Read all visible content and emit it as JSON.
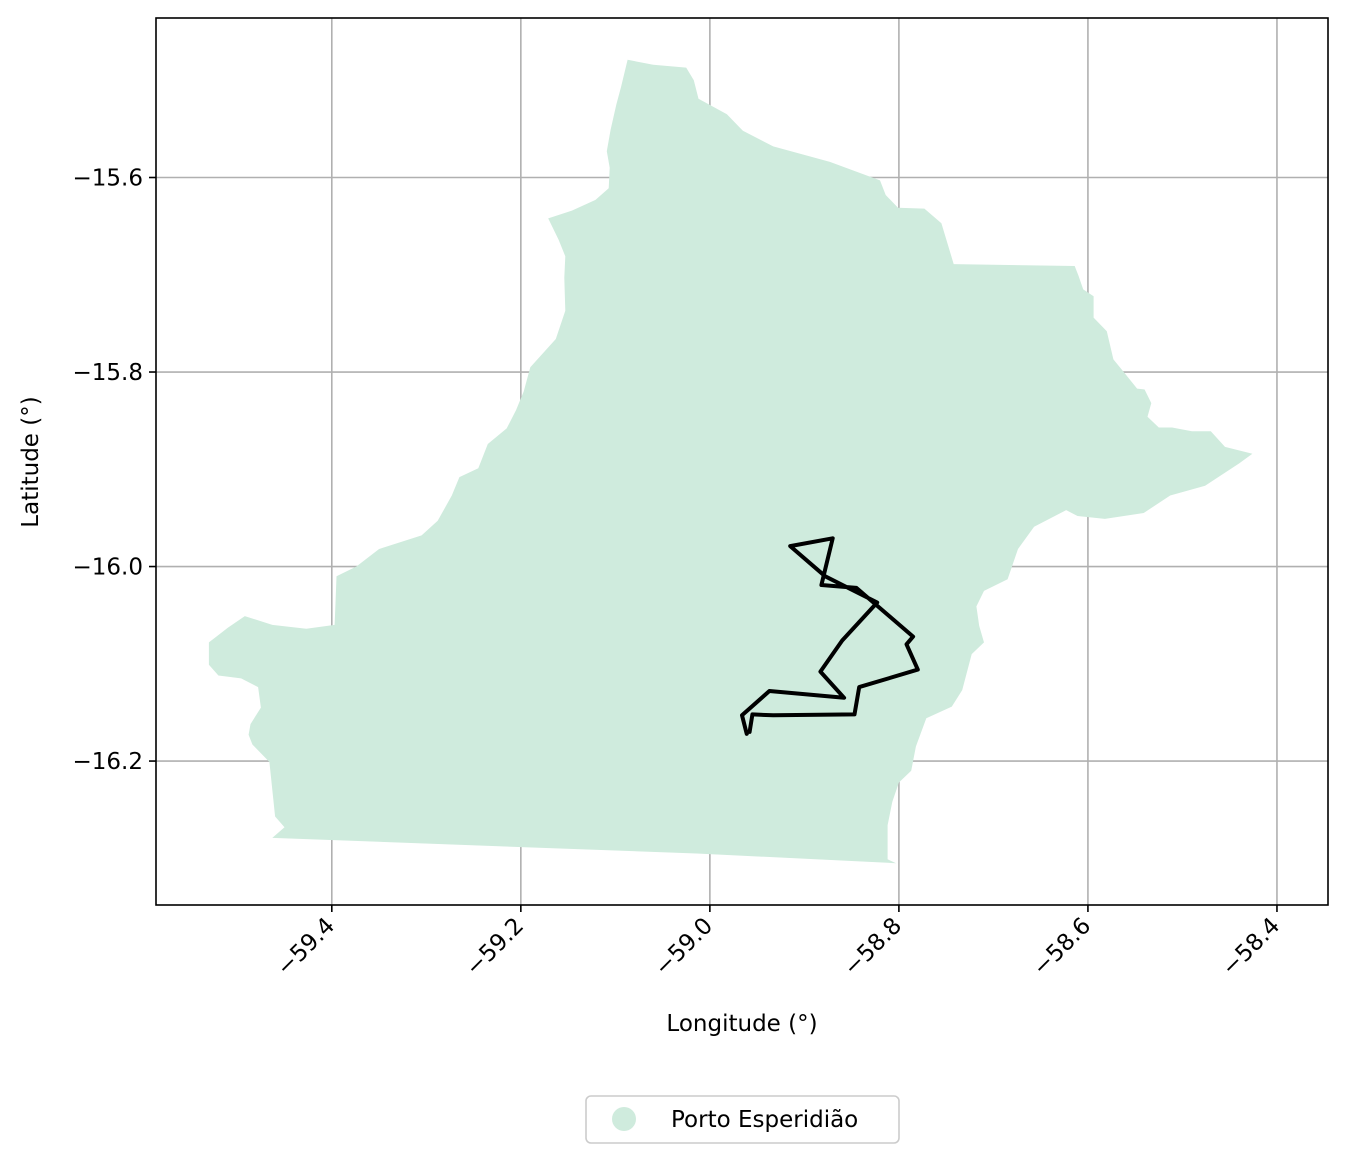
{
  "map": {
    "xlabel": "Longitude (°)",
    "ylabel": "Latitude (°)",
    "xlim": [
      -59.586,
      -58.346
    ],
    "ylim": [
      -16.348,
      -15.436
    ],
    "x_ticks": [
      -59.4,
      -59.2,
      -59.0,
      -58.8,
      -58.6,
      -58.4
    ],
    "x_tick_labels": [
      "−59.4",
      "−59.2",
      "−59.0",
      "−58.8",
      "−58.6",
      "−58.4"
    ],
    "y_ticks": [
      -15.6,
      -15.8,
      -16.0,
      -16.2
    ],
    "y_tick_labels": [
      "−15.6",
      "−15.8",
      "−16.0",
      "−16.2"
    ],
    "grid": true,
    "legend": {
      "placement": "bottom-center, below axes",
      "entries": [
        {
          "label": "Porto Esperidião",
          "marker": "circle",
          "color": "#cfebdd"
        }
      ]
    },
    "region": {
      "name": "Porto Esperidião",
      "fill_color": "#cfebdd",
      "boundary": [
        [
          -59.087,
          -15.479
        ],
        [
          -59.06,
          -15.484
        ],
        [
          -59.025,
          -15.487
        ],
        [
          -59.017,
          -15.5
        ],
        [
          -59.012,
          -15.519
        ],
        [
          -58.982,
          -15.535
        ],
        [
          -58.965,
          -15.552
        ],
        [
          -58.933,
          -15.568
        ],
        [
          -58.873,
          -15.584
        ],
        [
          -58.82,
          -15.603
        ],
        [
          -58.814,
          -15.618
        ],
        [
          -58.801,
          -15.631
        ],
        [
          -58.773,
          -15.632
        ],
        [
          -58.755,
          -15.647
        ],
        [
          -58.742,
          -15.689
        ],
        [
          -58.614,
          -15.691
        ],
        [
          -58.61,
          -15.701
        ],
        [
          -58.605,
          -15.715
        ],
        [
          -58.594,
          -15.722
        ],
        [
          -58.594,
          -15.744
        ],
        [
          -58.58,
          -15.758
        ],
        [
          -58.573,
          -15.787
        ],
        [
          -58.563,
          -15.799
        ],
        [
          -58.548,
          -15.817
        ],
        [
          -58.54,
          -15.818
        ],
        [
          -58.533,
          -15.832
        ],
        [
          -58.537,
          -15.846
        ],
        [
          -58.525,
          -15.857
        ],
        [
          -58.511,
          -15.857
        ],
        [
          -58.49,
          -15.861
        ],
        [
          -58.47,
          -15.861
        ],
        [
          -58.455,
          -15.877
        ],
        [
          -58.426,
          -15.884
        ],
        [
          -58.44,
          -15.894
        ],
        [
          -58.476,
          -15.917
        ],
        [
          -58.513,
          -15.927
        ],
        [
          -58.541,
          -15.945
        ],
        [
          -58.582,
          -15.951
        ],
        [
          -58.611,
          -15.948
        ],
        [
          -58.623,
          -15.942
        ],
        [
          -58.657,
          -15.959
        ],
        [
          -58.674,
          -15.982
        ],
        [
          -58.685,
          -16.013
        ],
        [
          -58.71,
          -16.025
        ],
        [
          -58.718,
          -16.041
        ],
        [
          -58.715,
          -16.061
        ],
        [
          -58.71,
          -16.078
        ],
        [
          -58.723,
          -16.09
        ],
        [
          -58.733,
          -16.127
        ],
        [
          -58.744,
          -16.144
        ],
        [
          -58.771,
          -16.156
        ],
        [
          -58.782,
          -16.185
        ],
        [
          -58.787,
          -16.21
        ],
        [
          -58.8,
          -16.222
        ],
        [
          -58.807,
          -16.242
        ],
        [
          -58.812,
          -16.266
        ],
        [
          -58.812,
          -16.301
        ],
        [
          -58.803,
          -16.305
        ],
        [
          -59.014,
          -16.295
        ],
        [
          -59.463,
          -16.279
        ],
        [
          -59.45,
          -16.268
        ],
        [
          -59.46,
          -16.257
        ],
        [
          -59.466,
          -16.201
        ],
        [
          -59.484,
          -16.183
        ],
        [
          -59.488,
          -16.173
        ],
        [
          -59.486,
          -16.162
        ],
        [
          -59.475,
          -16.145
        ],
        [
          -59.478,
          -16.124
        ],
        [
          -59.496,
          -16.115
        ],
        [
          -59.52,
          -16.112
        ],
        [
          -59.53,
          -16.101
        ],
        [
          -59.53,
          -16.078
        ],
        [
          -59.51,
          -16.063
        ],
        [
          -59.492,
          -16.051
        ],
        [
          -59.463,
          -16.06
        ],
        [
          -59.427,
          -16.064
        ],
        [
          -59.397,
          -16.06
        ],
        [
          -59.396,
          -16.035
        ],
        [
          -59.395,
          -16.01
        ],
        [
          -59.374,
          -16.0
        ],
        [
          -59.35,
          -15.982
        ],
        [
          -59.305,
          -15.968
        ],
        [
          -59.288,
          -15.953
        ],
        [
          -59.273,
          -15.927
        ],
        [
          -59.265,
          -15.908
        ],
        [
          -59.245,
          -15.899
        ],
        [
          -59.235,
          -15.874
        ],
        [
          -59.215,
          -15.858
        ],
        [
          -59.205,
          -15.839
        ],
        [
          -59.197,
          -15.82
        ],
        [
          -59.19,
          -15.795
        ],
        [
          -59.163,
          -15.766
        ],
        [
          -59.153,
          -15.737
        ],
        [
          -59.154,
          -15.703
        ],
        [
          -59.153,
          -15.681
        ],
        [
          -59.16,
          -15.664
        ],
        [
          -59.171,
          -15.642
        ],
        [
          -59.146,
          -15.634
        ],
        [
          -59.121,
          -15.623
        ],
        [
          -59.107,
          -15.611
        ],
        [
          -59.106,
          -15.59
        ],
        [
          -59.109,
          -15.573
        ],
        [
          -59.105,
          -15.551
        ],
        [
          -59.099,
          -15.525
        ],
        [
          -59.094,
          -15.507
        ]
      ]
    },
    "route": {
      "color": "#000000",
      "points": [
        [
          -58.958,
          -16.17
        ],
        [
          -58.955,
          -16.152
        ],
        [
          -58.933,
          -16.153
        ],
        [
          -58.847,
          -16.152
        ],
        [
          -58.842,
          -16.124
        ],
        [
          -58.78,
          -16.106
        ],
        [
          -58.792,
          -16.08
        ],
        [
          -58.785,
          -16.072
        ],
        [
          -58.845,
          -16.022
        ],
        [
          -58.882,
          -16.019
        ],
        [
          -58.87,
          -15.971
        ],
        [
          -58.915,
          -15.979
        ],
        [
          -58.878,
          -16.01
        ],
        [
          -58.823,
          -16.037
        ],
        [
          -58.86,
          -16.076
        ],
        [
          -58.883,
          -16.108
        ],
        [
          -58.858,
          -16.135
        ],
        [
          -58.937,
          -16.128
        ],
        [
          -58.966,
          -16.153
        ],
        [
          -58.961,
          -16.172
        ]
      ]
    }
  }
}
